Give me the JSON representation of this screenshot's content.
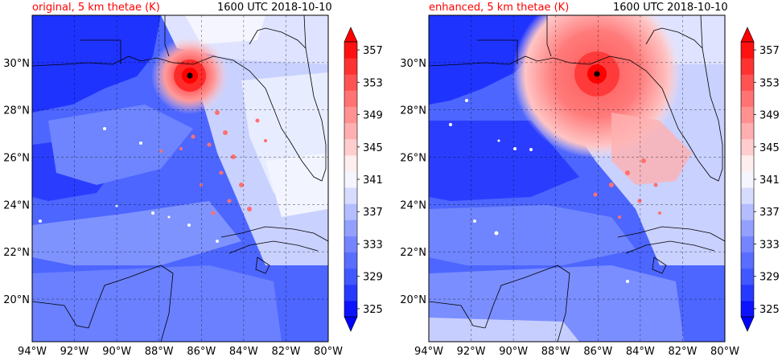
{
  "chart_data": [
    {
      "type": "heatmap",
      "title_left": "original, 5 km thetae (K)",
      "title_right": "1600 UTC 2018-10-10",
      "x_ticks": [
        "94°W",
        "92°W",
        "90°W",
        "88°W",
        "86°W",
        "84°W",
        "82°W",
        "80°W"
      ],
      "y_ticks": [
        "30°N",
        "28°N",
        "26°N",
        "24°N",
        "22°N",
        "20°N"
      ],
      "x_range_deg": [
        -94,
        -80
      ],
      "y_range_deg": [
        18.2,
        32.0
      ],
      "grid": true,
      "colorbar_ticks": [
        357,
        353,
        349,
        345,
        341,
        337,
        333,
        329,
        325
      ],
      "colorbar_range": [
        325,
        359
      ],
      "storm_center": {
        "lon": -86.5,
        "lat": 29.5
      }
    },
    {
      "type": "heatmap",
      "title_left": "enhanced, 5 km thetae (K)",
      "title_right": "1600 UTC 2018-10-10",
      "x_ticks": [
        "94°W",
        "92°W",
        "90°W",
        "88°W",
        "86°W",
        "84°W",
        "82°W",
        "80°W"
      ],
      "y_ticks": [
        "30°N",
        "28°N",
        "26°N",
        "24°N",
        "22°N",
        "20°N"
      ],
      "x_range_deg": [
        -94,
        -80
      ],
      "y_range_deg": [
        18.2,
        32.0
      ],
      "grid": true,
      "colorbar_ticks": [
        357,
        353,
        349,
        345,
        341,
        337,
        333,
        329,
        325
      ],
      "colorbar_range": [
        325,
        359
      ],
      "storm_center": {
        "lon": -86.0,
        "lat": 29.5
      }
    }
  ]
}
